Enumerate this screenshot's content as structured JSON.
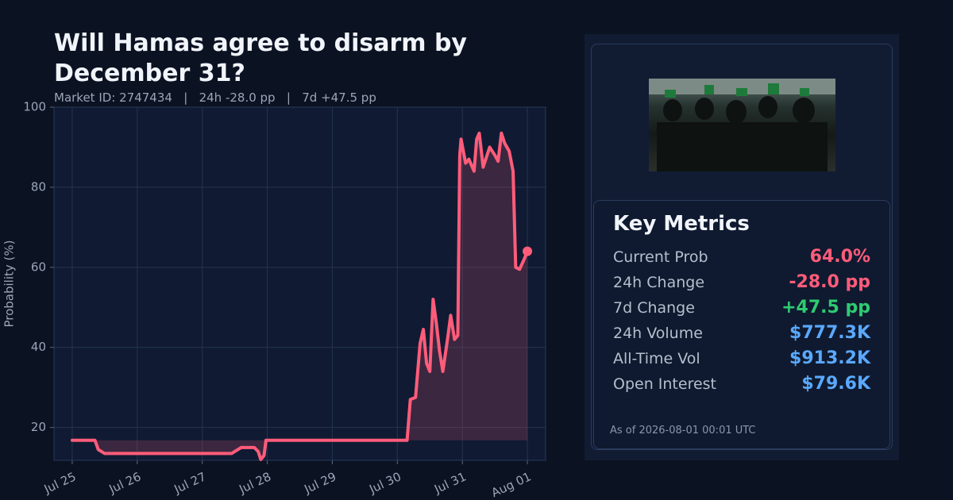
{
  "chart_data": {
    "type": "line",
    "title": "Will Hamas agree to disarm by December 31?",
    "subtitle": "Market ID: 2747434   |   24h -28.0 pp   |   7d +47.5 pp",
    "y_label": "Probability (%)",
    "x": [
      0,
      0.35,
      0.4,
      0.5,
      2.45,
      2.6,
      2.8,
      2.86,
      2.9,
      2.95,
      2.98,
      5.15,
      5.2,
      5.28,
      5.35,
      5.4,
      5.45,
      5.5,
      5.55,
      5.6,
      5.65,
      5.7,
      5.78,
      5.82,
      5.88,
      5.93,
      5.96,
      5.98,
      6.05,
      6.1,
      6.18,
      6.22,
      6.26,
      6.32,
      6.38,
      6.42,
      6.5,
      6.55,
      6.6,
      6.65,
      6.72,
      6.78,
      6.82,
      6.88,
      6.95,
      7.0
    ],
    "series": [
      {
        "name": "Probability",
        "color": "#ff5c7a",
        "values": [
          16.8,
          16.8,
          14.5,
          13.5,
          13.5,
          15,
          15,
          14,
          12,
          13,
          16.8,
          16.8,
          27,
          27.5,
          41,
          44.5,
          36,
          34,
          52,
          46,
          39,
          34,
          43,
          48,
          42,
          43,
          88,
          92,
          86,
          87,
          84,
          92,
          93.5,
          85,
          88,
          90,
          88,
          86.5,
          93.5,
          91,
          89,
          84,
          60,
          59.5,
          62,
          64
        ]
      }
    ],
    "xlim": [
      -0.28,
      7.28
    ],
    "ylim": [
      11.8,
      100
    ],
    "xticks": [
      {
        "value": 0,
        "label": "Jul 25"
      },
      {
        "value": 1,
        "label": "Jul 26"
      },
      {
        "value": 2,
        "label": "Jul 27"
      },
      {
        "value": 3,
        "label": "Jul 28"
      },
      {
        "value": 4,
        "label": "Jul 29"
      },
      {
        "value": 5,
        "label": "Jul 30"
      },
      {
        "value": 6,
        "label": "Jul 31"
      },
      {
        "value": 7,
        "label": "Aug 01"
      }
    ],
    "yticks": [
      20,
      40,
      60,
      80,
      100
    ],
    "grid": true
  },
  "panel": {
    "title": "Key Metrics",
    "rows": [
      {
        "label": "Current Prob",
        "value": "64.0%",
        "color": "#ff5c7a"
      },
      {
        "label": "24h Change",
        "value": "-28.0 pp",
        "color": "#ff5c7a"
      },
      {
        "label": "7d Change",
        "value": "+47.5 pp",
        "color": "#2ecc71"
      },
      {
        "label": "24h Volume",
        "value": "$777.3K",
        "color": "#5aa9ff"
      },
      {
        "label": "All-Time Vol",
        "value": "$913.2K",
        "color": "#5aa9ff"
      },
      {
        "label": "Open Interest",
        "value": "$79.6K",
        "color": "#5aa9ff"
      }
    ],
    "footnote": "As of 2026-08-01 00:01 UTC"
  }
}
